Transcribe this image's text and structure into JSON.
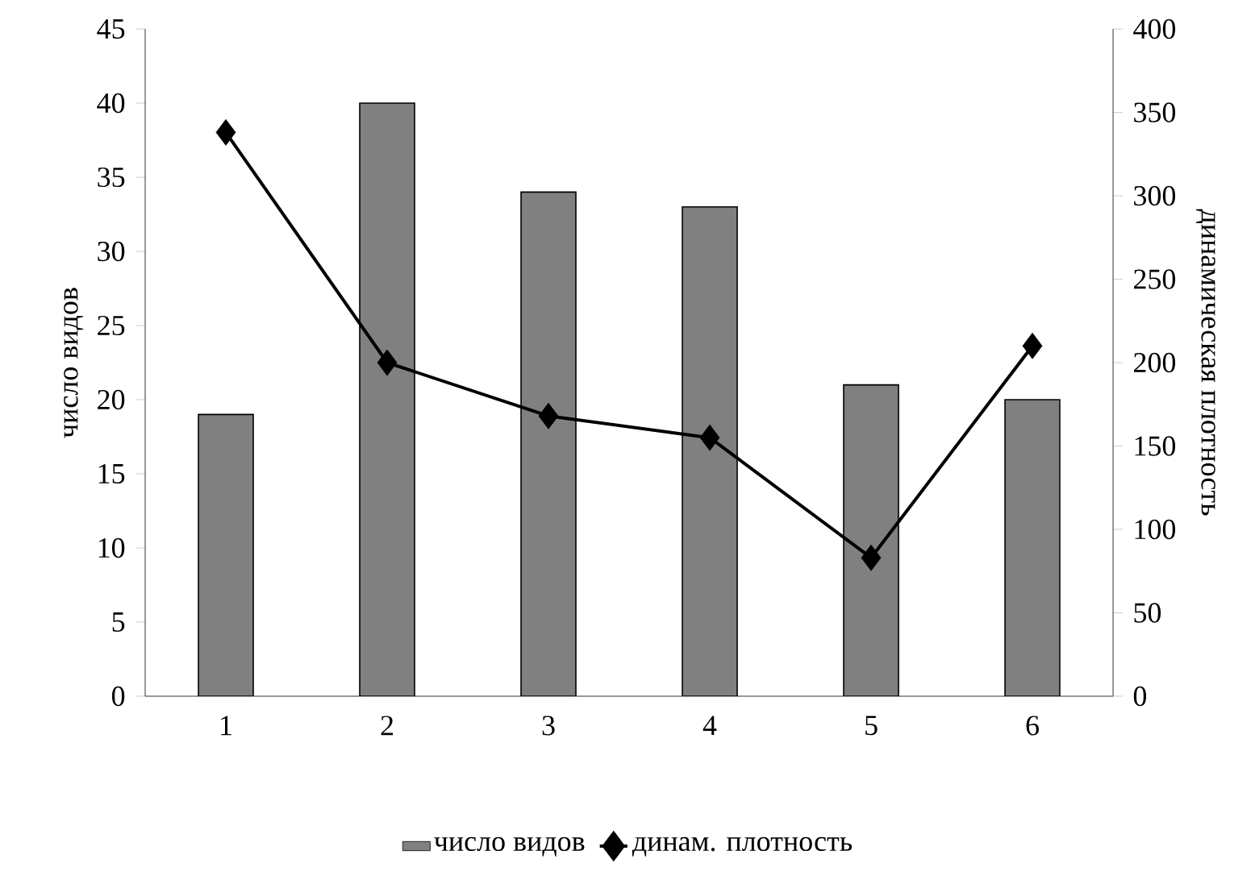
{
  "chart_data": {
    "type": "bar",
    "categories": [
      "1",
      "2",
      "3",
      "4",
      "5",
      "6"
    ],
    "series": [
      {
        "name": "число видов",
        "color": "#808080",
        "values": [
          19,
          40,
          34,
          33,
          21,
          20
        ]
      },
      {
        "name": "динам. плотность",
        "type": "line",
        "axis": "y2",
        "color": "#000000",
        "values": [
          338,
          200,
          168,
          155,
          83,
          210
        ]
      }
    ],
    "ylabel": "число видов",
    "y2label": "динамическая плотность",
    "ylim": [
      0,
      45
    ],
    "yticks": [
      0,
      5,
      10,
      15,
      20,
      25,
      30,
      35,
      40,
      45
    ],
    "y2lim": [
      0,
      400
    ],
    "y2ticks": [
      0,
      50,
      100,
      150,
      200,
      250,
      300,
      350,
      400
    ],
    "legend": "bottom",
    "marker": "diamond",
    "line_style": "solid"
  }
}
